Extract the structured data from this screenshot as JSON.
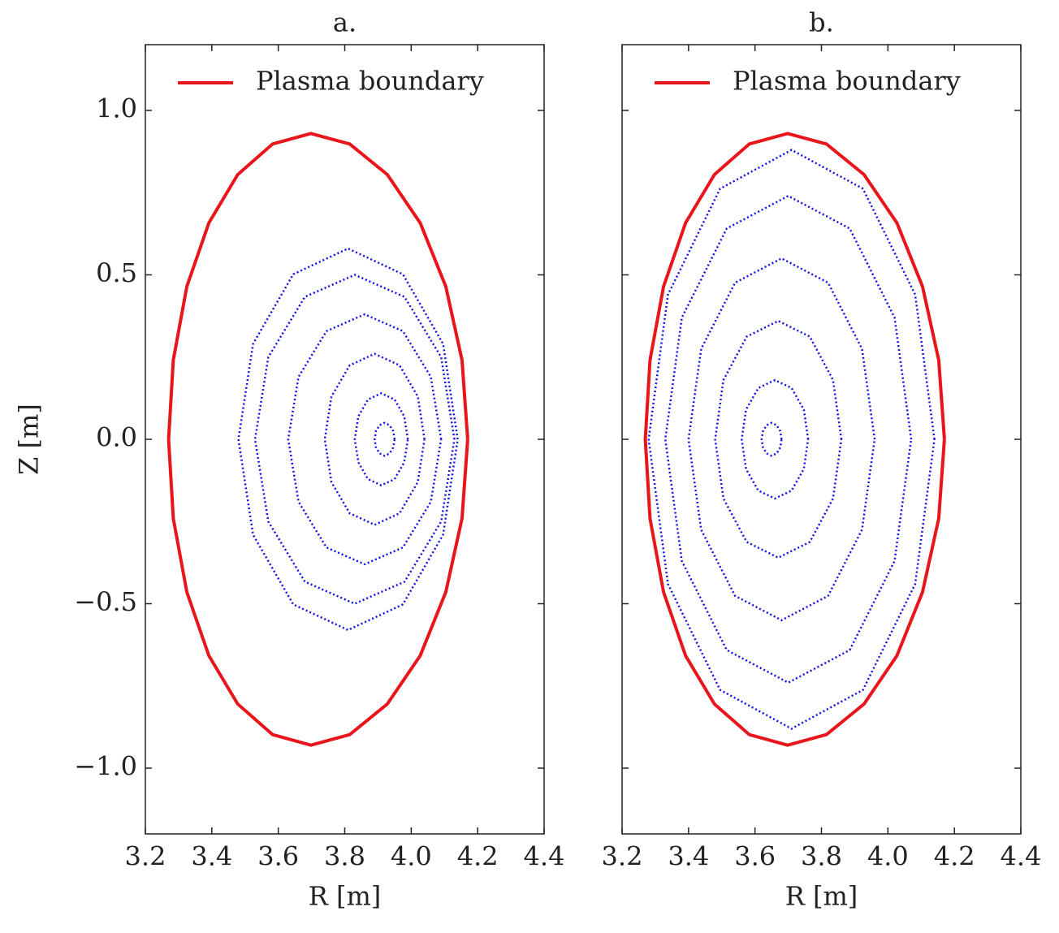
{
  "chart_data": [
    {
      "type": "line",
      "title": "a.",
      "xlabel": "R [m]",
      "ylabel": "Z [m]",
      "xlim": [
        3.2,
        4.4
      ],
      "ylim": [
        -1.2,
        1.2
      ],
      "xticks": [
        3.2,
        3.4,
        3.6,
        3.8,
        {
          "value": 4,
          "label": "4.0"
        },
        4.2,
        4.4
      ],
      "yticks": [
        {
          "value": -1,
          "label": "−1.0"
        },
        {
          "value": -0.5,
          "label": "−0.5"
        },
        {
          "value": 0,
          "label": "0.0"
        },
        {
          "value": 0.5,
          "label": "0.5"
        },
        {
          "value": 1,
          "label": "1.0"
        }
      ],
      "ytick_labels": true,
      "legend": "upper left",
      "series": [
        {
          "name": "Plasma boundary",
          "color": "#e8161b",
          "style": "solid",
          "x": [
            4.17,
            4.153,
            4.104,
            4.027,
            3.928,
            3.815,
            3.698,
            3.583,
            3.478,
            3.391,
            3.325,
            3.284,
            3.27,
            3.284,
            3.325,
            3.391,
            3.478,
            3.583,
            3.698,
            3.815,
            3.928,
            4.027,
            4.104,
            4.153,
            4.17
          ],
          "y": [
            0,
            0.241,
            0.465,
            0.658,
            0.805,
            0.898,
            0.93,
            0.898,
            0.805,
            0.658,
            0.465,
            0.241,
            0,
            -0.241,
            -0.465,
            -0.658,
            -0.805,
            -0.898,
            -0.93,
            -0.898,
            -0.805,
            -0.658,
            -0.465,
            -0.241,
            0
          ]
        },
        {
          "color": "#1010ee",
          "style": "dotted",
          "x": [
            3.95,
            3.946,
            3.935,
            3.92,
            3.905,
            3.894,
            3.89,
            3.894,
            3.905,
            3.92,
            3.935,
            3.946,
            3.95
          ],
          "y": [
            0,
            0.025,
            0.043,
            0.05,
            0.043,
            0.025,
            0,
            -0.025,
            -0.043,
            -0.05,
            -0.043,
            -0.025,
            0
          ]
        },
        {
          "color": "#1010ee",
          "style": "dotted",
          "x": [
            3.99,
            3.979,
            3.95,
            3.91,
            3.87,
            3.841,
            3.83,
            3.841,
            3.87,
            3.91,
            3.95,
            3.979,
            3.99
          ],
          "y": [
            0,
            0.07,
            0.121,
            0.14,
            0.121,
            0.07,
            0,
            -0.07,
            -0.121,
            -0.14,
            -0.121,
            -0.07,
            0
          ]
        },
        {
          "color": "#1010ee",
          "style": "dotted",
          "x": [
            4.04,
            4.02,
            3.965,
            3.89,
            3.815,
            3.76,
            3.74,
            3.76,
            3.815,
            3.89,
            3.965,
            4.02,
            4.04
          ],
          "y": [
            0,
            0.13,
            0.225,
            0.26,
            0.225,
            0.13,
            0,
            -0.13,
            -0.225,
            -0.26,
            -0.225,
            -0.13,
            0
          ]
        },
        {
          "color": "#1010ee",
          "style": "dotted",
          "x": [
            4.09,
            4.059,
            3.975,
            3.86,
            3.745,
            3.661,
            3.63,
            3.661,
            3.745,
            3.86,
            3.975,
            4.059,
            4.09
          ],
          "y": [
            0,
            0.19,
            0.329,
            0.38,
            0.329,
            0.19,
            0,
            -0.19,
            -0.329,
            -0.38,
            -0.329,
            -0.19,
            0
          ]
        },
        {
          "color": "#1010ee",
          "style": "dotted",
          "x": [
            4.13,
            4.09,
            3.98,
            3.83,
            3.68,
            3.57,
            3.53,
            3.57,
            3.68,
            3.83,
            3.98,
            4.09,
            4.13
          ],
          "y": [
            0,
            0.25,
            0.433,
            0.5,
            0.433,
            0.25,
            0,
            -0.25,
            -0.433,
            -0.5,
            -0.433,
            -0.25,
            0
          ]
        },
        {
          "color": "#1010ee",
          "style": "dotted",
          "x": [
            4.14,
            4.096,
            3.975,
            3.81,
            3.645,
            3.524,
            3.48,
            3.524,
            3.645,
            3.81,
            3.975,
            4.096,
            4.14
          ],
          "y": [
            0,
            0.29,
            0.502,
            0.58,
            0.502,
            0.29,
            0,
            -0.29,
            -0.502,
            -0.58,
            -0.502,
            -0.29,
            0
          ]
        }
      ]
    },
    {
      "type": "line",
      "title": "b.",
      "xlabel": "R [m]",
      "xlim": [
        3.2,
        4.4
      ],
      "ylim": [
        -1.2,
        1.2
      ],
      "xticks": [
        3.2,
        3.4,
        3.6,
        3.8,
        {
          "value": 4,
          "label": "4.0"
        },
        4.2,
        4.4
      ],
      "yticks": [
        -1,
        -0.5,
        0,
        0.5,
        1
      ],
      "ytick_labels": false,
      "legend": "upper left",
      "series": [
        {
          "name": "Plasma boundary",
          "color": "#e8161b",
          "style": "solid",
          "x": [
            4.17,
            4.153,
            4.104,
            4.027,
            3.928,
            3.815,
            3.698,
            3.583,
            3.478,
            3.391,
            3.325,
            3.284,
            3.27,
            3.284,
            3.325,
            3.391,
            3.478,
            3.583,
            3.698,
            3.815,
            3.928,
            4.027,
            4.104,
            4.153,
            4.17
          ],
          "y": [
            0,
            0.241,
            0.465,
            0.658,
            0.805,
            0.898,
            0.93,
            0.898,
            0.805,
            0.658,
            0.465,
            0.241,
            0,
            -0.241,
            -0.465,
            -0.658,
            -0.805,
            -0.898,
            -0.93,
            -0.898,
            -0.805,
            -0.658,
            -0.465,
            -0.241,
            0
          ]
        },
        {
          "color": "#1010ee",
          "style": "dotted",
          "x": [
            3.68,
            3.676,
            3.665,
            3.65,
            3.635,
            3.624,
            3.62,
            3.624,
            3.635,
            3.65,
            3.665,
            3.676,
            3.68
          ],
          "y": [
            0,
            0.025,
            0.043,
            0.05,
            0.043,
            0.025,
            0,
            -0.025,
            -0.043,
            -0.05,
            -0.043,
            -0.025,
            0
          ]
        },
        {
          "color": "#1010ee",
          "style": "dotted",
          "x": [
            3.76,
            3.747,
            3.71,
            3.66,
            3.61,
            3.573,
            3.56,
            3.573,
            3.61,
            3.66,
            3.71,
            3.747,
            3.76
          ],
          "y": [
            0,
            0.09,
            0.156,
            0.18,
            0.156,
            0.09,
            0,
            -0.09,
            -0.156,
            -0.18,
            -0.156,
            -0.09,
            0
          ]
        },
        {
          "color": "#1010ee",
          "style": "dotted",
          "x": [
            3.86,
            3.835,
            3.765,
            3.67,
            3.575,
            3.505,
            3.48,
            3.505,
            3.575,
            3.67,
            3.765,
            3.835,
            3.86
          ],
          "y": [
            0,
            0.18,
            0.312,
            0.36,
            0.312,
            0.18,
            0,
            -0.18,
            -0.312,
            -0.36,
            -0.312,
            -0.18,
            0
          ]
        },
        {
          "color": "#1010ee",
          "style": "dotted",
          "x": [
            3.96,
            3.922,
            3.82,
            3.68,
            3.54,
            3.438,
            3.4,
            3.438,
            3.54,
            3.68,
            3.82,
            3.922,
            3.96
          ],
          "y": [
            0,
            0.275,
            0.476,
            0.55,
            0.476,
            0.275,
            0,
            -0.275,
            -0.476,
            -0.55,
            -0.476,
            -0.275,
            0
          ]
        },
        {
          "color": "#1010ee",
          "style": "dotted",
          "x": [
            4.07,
            4.02,
            3.885,
            3.7,
            3.515,
            3.38,
            3.33,
            3.38,
            3.515,
            3.7,
            3.885,
            4.02,
            4.07
          ],
          "y": [
            0,
            0.37,
            0.641,
            0.74,
            0.641,
            0.37,
            0,
            -0.37,
            -0.641,
            -0.74,
            -0.641,
            -0.37,
            0
          ]
        },
        {
          "color": "#1010ee",
          "style": "dotted",
          "x": [
            4.14,
            4.082,
            3.925,
            3.71,
            3.495,
            3.338,
            3.28,
            3.338,
            3.495,
            3.71,
            3.925,
            4.082,
            4.14
          ],
          "y": [
            0,
            0.44,
            0.762,
            0.88,
            0.762,
            0.44,
            0,
            -0.44,
            -0.762,
            -0.88,
            -0.762,
            -0.44,
            0
          ]
        }
      ]
    }
  ]
}
